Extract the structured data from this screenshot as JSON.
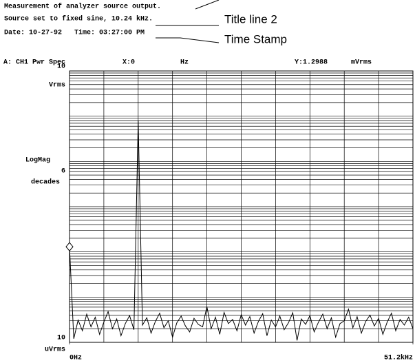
{
  "chart_data": {
    "type": "line",
    "title_lines": [
      "Measurement of analyzer source output.",
      "Source set to fixed sine, 10.24 kHz.",
      "Date: 10-27-92   Time: 03:27:00 PM"
    ],
    "annotations": [
      "Title line 2",
      "Time Stamp"
    ],
    "header": {
      "channel": "A: CH1 Pwr Spec",
      "x_readout": "X:0",
      "x_unit": "Hz",
      "y_readout": "Y:1.2988",
      "y_unit": "mVrms"
    },
    "ylabel": "LogMag",
    "y_decades": 6,
    "y_decades_label": "decades",
    "y_top_unit": "Vrms",
    "y_bottom_unit": "uVrms",
    "log_y": true,
    "ylim": [
      1e-05,
      10
    ],
    "yticks": [
      {
        "value": 1e-05,
        "label": "10"
      },
      10
    ],
    "xlim": [
      0,
      51200
    ],
    "xticks": [
      {
        "value": 0,
        "label": "0Hz"
      },
      {
        "value": 51200,
        "label": "51.2kHz"
      }
    ],
    "grid": {
      "x_divisions": 10,
      "y_minor": true
    },
    "color": "#000000",
    "marker": {
      "x": 0,
      "y": 0.0012988
    },
    "x": [
      0,
      640,
      1280,
      1920,
      2560,
      3200,
      3840,
      4480,
      5120,
      5760,
      6400,
      7040,
      7680,
      8320,
      8960,
      9600,
      10240,
      10880,
      11520,
      12160,
      12800,
      13440,
      14080,
      14720,
      15360,
      16000,
      16640,
      17280,
      17920,
      18560,
      19200,
      19840,
      20480,
      21120,
      21760,
      22400,
      23040,
      23680,
      24320,
      24960,
      25600,
      26240,
      26880,
      27520,
      28160,
      28800,
      29440,
      30080,
      30720,
      31360,
      32000,
      32640,
      33280,
      33920,
      34560,
      35200,
      35840,
      36480,
      37120,
      37760,
      38400,
      39040,
      39680,
      40320,
      40960,
      41600,
      42240,
      42880,
      43520,
      44160,
      44800,
      45440,
      46080,
      46720,
      47360,
      48000,
      48640,
      49280,
      49920,
      50560,
      51200
    ],
    "values": [
      0.0012988,
      1.2e-05,
      3.1e-05,
      1.8e-05,
      4.2e-05,
      2.2e-05,
      3.6e-05,
      1.5e-05,
      2.8e-05,
      4.8e-05,
      2e-05,
      3.3e-05,
      1.4e-05,
      2.6e-05,
      3.9e-05,
      1.9e-05,
      0.8,
      2.4e-05,
      3.5e-05,
      1.6e-05,
      2.9e-05,
      4.4e-05,
      2.1e-05,
      3e-05,
      1.3e-05,
      2.7e-05,
      3.8e-05,
      2.3e-05,
      1.7e-05,
      3.4e-05,
      2.5e-05,
      2.2e-05,
      6.2e-05,
      2e-05,
      3.6e-05,
      1.5e-05,
      4.6e-05,
      2.6e-05,
      3.2e-05,
      1.8e-05,
      4.1e-05,
      2.4e-05,
      3.7e-05,
      1.6e-05,
      2.9e-05,
      4.3e-05,
      1.4e-05,
      3.1e-05,
      2.2e-05,
      3.8e-05,
      1.9e-05,
      2.7e-05,
      4.5e-05,
      1.1e-05,
      3.3e-05,
      2.5e-05,
      3.9e-05,
      1.7e-05,
      2.8e-05,
      4.2e-05,
      2e-05,
      3.5e-05,
      1.3e-05,
      2.6e-05,
      3e-05,
      5.4e-05,
      2.1e-05,
      3.7e-05,
      1.6e-05,
      2.9e-05,
      4e-05,
      2.3e-05,
      3.4e-05,
      1.5e-05,
      2.8e-05,
      4.4e-05,
      1.8e-05,
      3.2e-05,
      2.4e-05,
      3.6e-05,
      2e-05
    ]
  }
}
